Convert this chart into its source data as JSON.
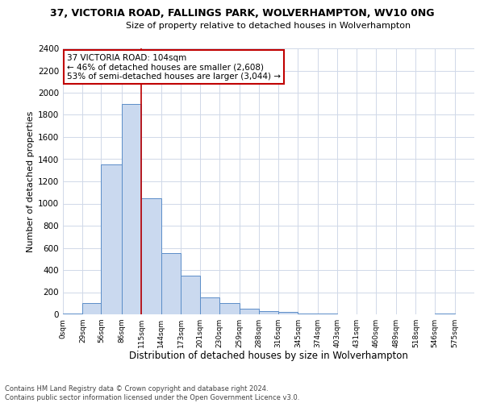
{
  "title": "37, VICTORIA ROAD, FALLINGS PARK, WOLVERHAMPTON, WV10 0NG",
  "subtitle": "Size of property relative to detached houses in Wolverhampton",
  "xlabel": "Distribution of detached houses by size in Wolverhampton",
  "ylabel": "Number of detached properties",
  "footer_line1": "Contains HM Land Registry data © Crown copyright and database right 2024.",
  "footer_line2": "Contains public sector information licensed under the Open Government Licence v3.0.",
  "annotation_line1": "37 VICTORIA ROAD: 104sqm",
  "annotation_line2": "← 46% of detached houses are smaller (2,608)",
  "annotation_line3": "53% of semi-detached houses are larger (3,044) →",
  "property_sqm": 104,
  "bar_left_edges": [
    0,
    29,
    56,
    86,
    115,
    144,
    173,
    201,
    230,
    259,
    288,
    316,
    345,
    374,
    403,
    431,
    460,
    489,
    518,
    546
  ],
  "bar_heights": [
    10,
    100,
    1350,
    1900,
    1050,
    550,
    350,
    150,
    100,
    50,
    30,
    20,
    10,
    5,
    3,
    2,
    1,
    1,
    0,
    10
  ],
  "bar_color": "#cad9ef",
  "bar_edge_color": "#5b8dc8",
  "vline_x": 115,
  "vline_color": "#c00000",
  "annotation_box_color": "#c00000",
  "ylim": [
    0,
    2400
  ],
  "yticks": [
    0,
    200,
    400,
    600,
    800,
    1000,
    1200,
    1400,
    1600,
    1800,
    2000,
    2200,
    2400
  ],
  "xtick_labels": [
    "0sqm",
    "29sqm",
    "56sqm",
    "86sqm",
    "115sqm",
    "144sqm",
    "173sqm",
    "201sqm",
    "230sqm",
    "259sqm",
    "288sqm",
    "316sqm",
    "345sqm",
    "374sqm",
    "403sqm",
    "431sqm",
    "460sqm",
    "489sqm",
    "518sqm",
    "546sqm",
    "575sqm"
  ],
  "xtick_positions": [
    0,
    29,
    56,
    86,
    115,
    144,
    173,
    201,
    230,
    259,
    288,
    316,
    345,
    374,
    403,
    431,
    460,
    489,
    518,
    546,
    575
  ],
  "background_color": "#ffffff",
  "grid_color": "#d0d8e8"
}
